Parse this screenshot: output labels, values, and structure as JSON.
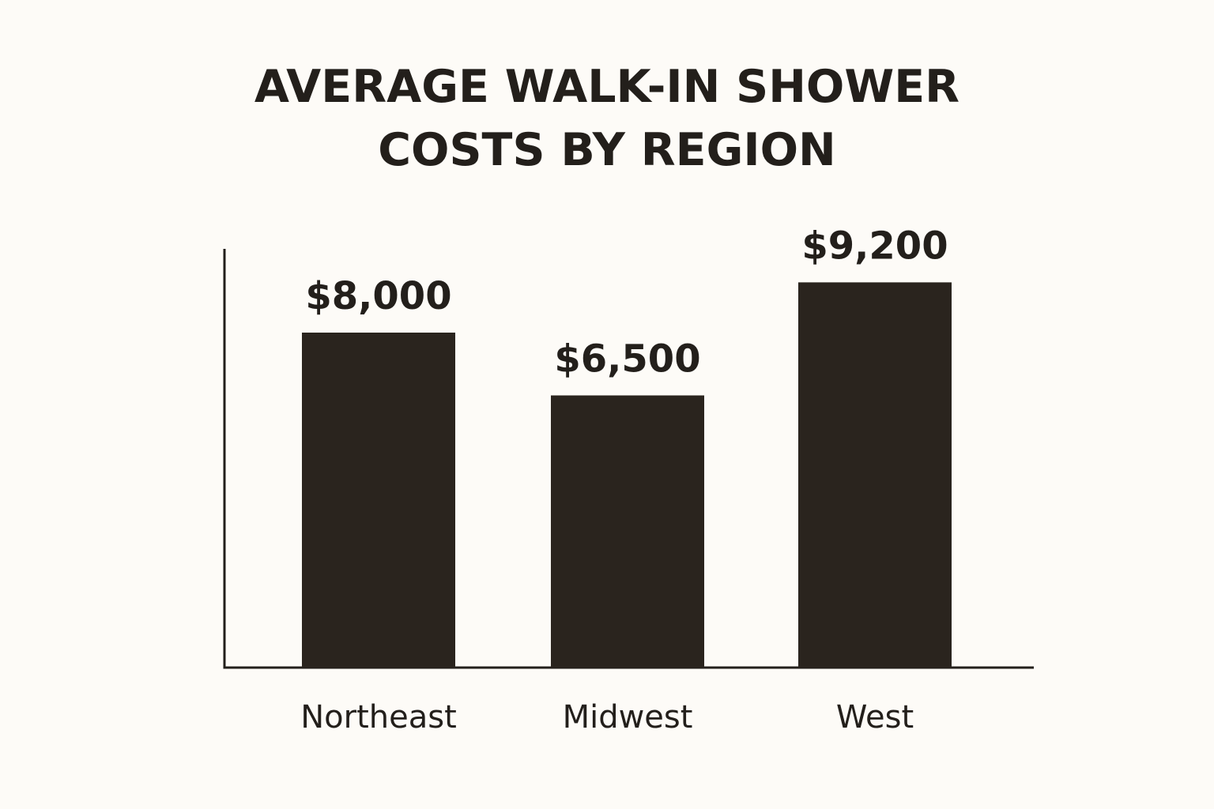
{
  "chart_data": {
    "type": "bar",
    "title_lines": [
      "AVERAGE WALK-IN SHOWER",
      "COSTS BY REGION"
    ],
    "categories": [
      "Northeast",
      "Midwest",
      "West"
    ],
    "values": [
      8000,
      6500,
      9200
    ],
    "value_labels": [
      "$8,000",
      "$6,500",
      "$9,200"
    ],
    "xlabel": "",
    "ylabel": "",
    "ylim": [
      0,
      10000
    ],
    "grid": false,
    "legend": "none",
    "colors": {
      "bar": "#2a241e",
      "axis": "#231f1b",
      "text": "#231f1b",
      "background": "#fdfbf7"
    }
  }
}
